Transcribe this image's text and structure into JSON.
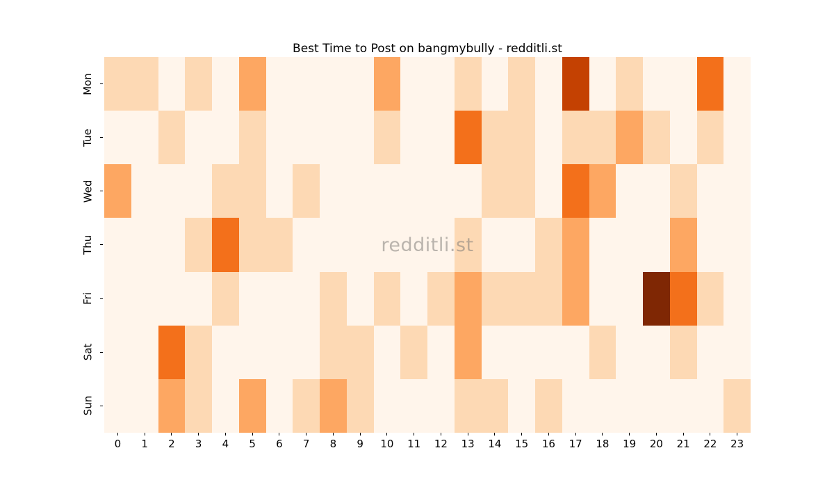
{
  "chart_data": {
    "type": "heatmap",
    "title": "Best Time to Post on bangmybully - redditli.st",
    "watermark": "redditli.st",
    "xlabel": "",
    "ylabel": "",
    "rows": [
      "Mon",
      "Tue",
      "Wed",
      "Thu",
      "Fri",
      "Sat",
      "Sun"
    ],
    "columns": [
      "0",
      "1",
      "2",
      "3",
      "4",
      "5",
      "6",
      "7",
      "8",
      "9",
      "10",
      "11",
      "12",
      "13",
      "14",
      "15",
      "16",
      "17",
      "18",
      "19",
      "20",
      "21",
      "22",
      "23"
    ],
    "values": [
      [
        1,
        1,
        0,
        1,
        0,
        2,
        0,
        0,
        0,
        0,
        2,
        0,
        0,
        1,
        0,
        1,
        0,
        4,
        0,
        1,
        0,
        0,
        3,
        0
      ],
      [
        0,
        0,
        1,
        0,
        0,
        1,
        0,
        0,
        0,
        0,
        1,
        0,
        0,
        3,
        1,
        1,
        0,
        1,
        1,
        2,
        1,
        0,
        1,
        0
      ],
      [
        2,
        0,
        0,
        0,
        1,
        1,
        0,
        1,
        0,
        0,
        0,
        0,
        0,
        0,
        1,
        1,
        0,
        3,
        2,
        0,
        0,
        1,
        0,
        0
      ],
      [
        0,
        0,
        0,
        1,
        3,
        1,
        1,
        0,
        0,
        0,
        0,
        0,
        0,
        1,
        0,
        0,
        1,
        2,
        0,
        0,
        0,
        2,
        0,
        0
      ],
      [
        0,
        0,
        0,
        0,
        1,
        0,
        0,
        0,
        1,
        0,
        1,
        0,
        1,
        2,
        1,
        1,
        1,
        2,
        0,
        0,
        5,
        3,
        1,
        0
      ],
      [
        0,
        0,
        3,
        1,
        0,
        0,
        0,
        0,
        1,
        1,
        0,
        1,
        0,
        2,
        0,
        0,
        0,
        0,
        1,
        0,
        0,
        1,
        0,
        0
      ],
      [
        0,
        0,
        2,
        1,
        0,
        2,
        0,
        1,
        2,
        1,
        0,
        0,
        0,
        1,
        1,
        0,
        1,
        0,
        0,
        0,
        0,
        0,
        0,
        1
      ]
    ],
    "value_range": [
      0,
      5
    ],
    "colormap": "Oranges",
    "palette": [
      "#FFF5EB",
      "#FDD9B4",
      "#FDA762",
      "#F3701B",
      "#C44102",
      "#7F2704"
    ],
    "grid": false,
    "legend": "none",
    "background_color": "#FFFFFF",
    "watermark_color": "#827E7A"
  }
}
